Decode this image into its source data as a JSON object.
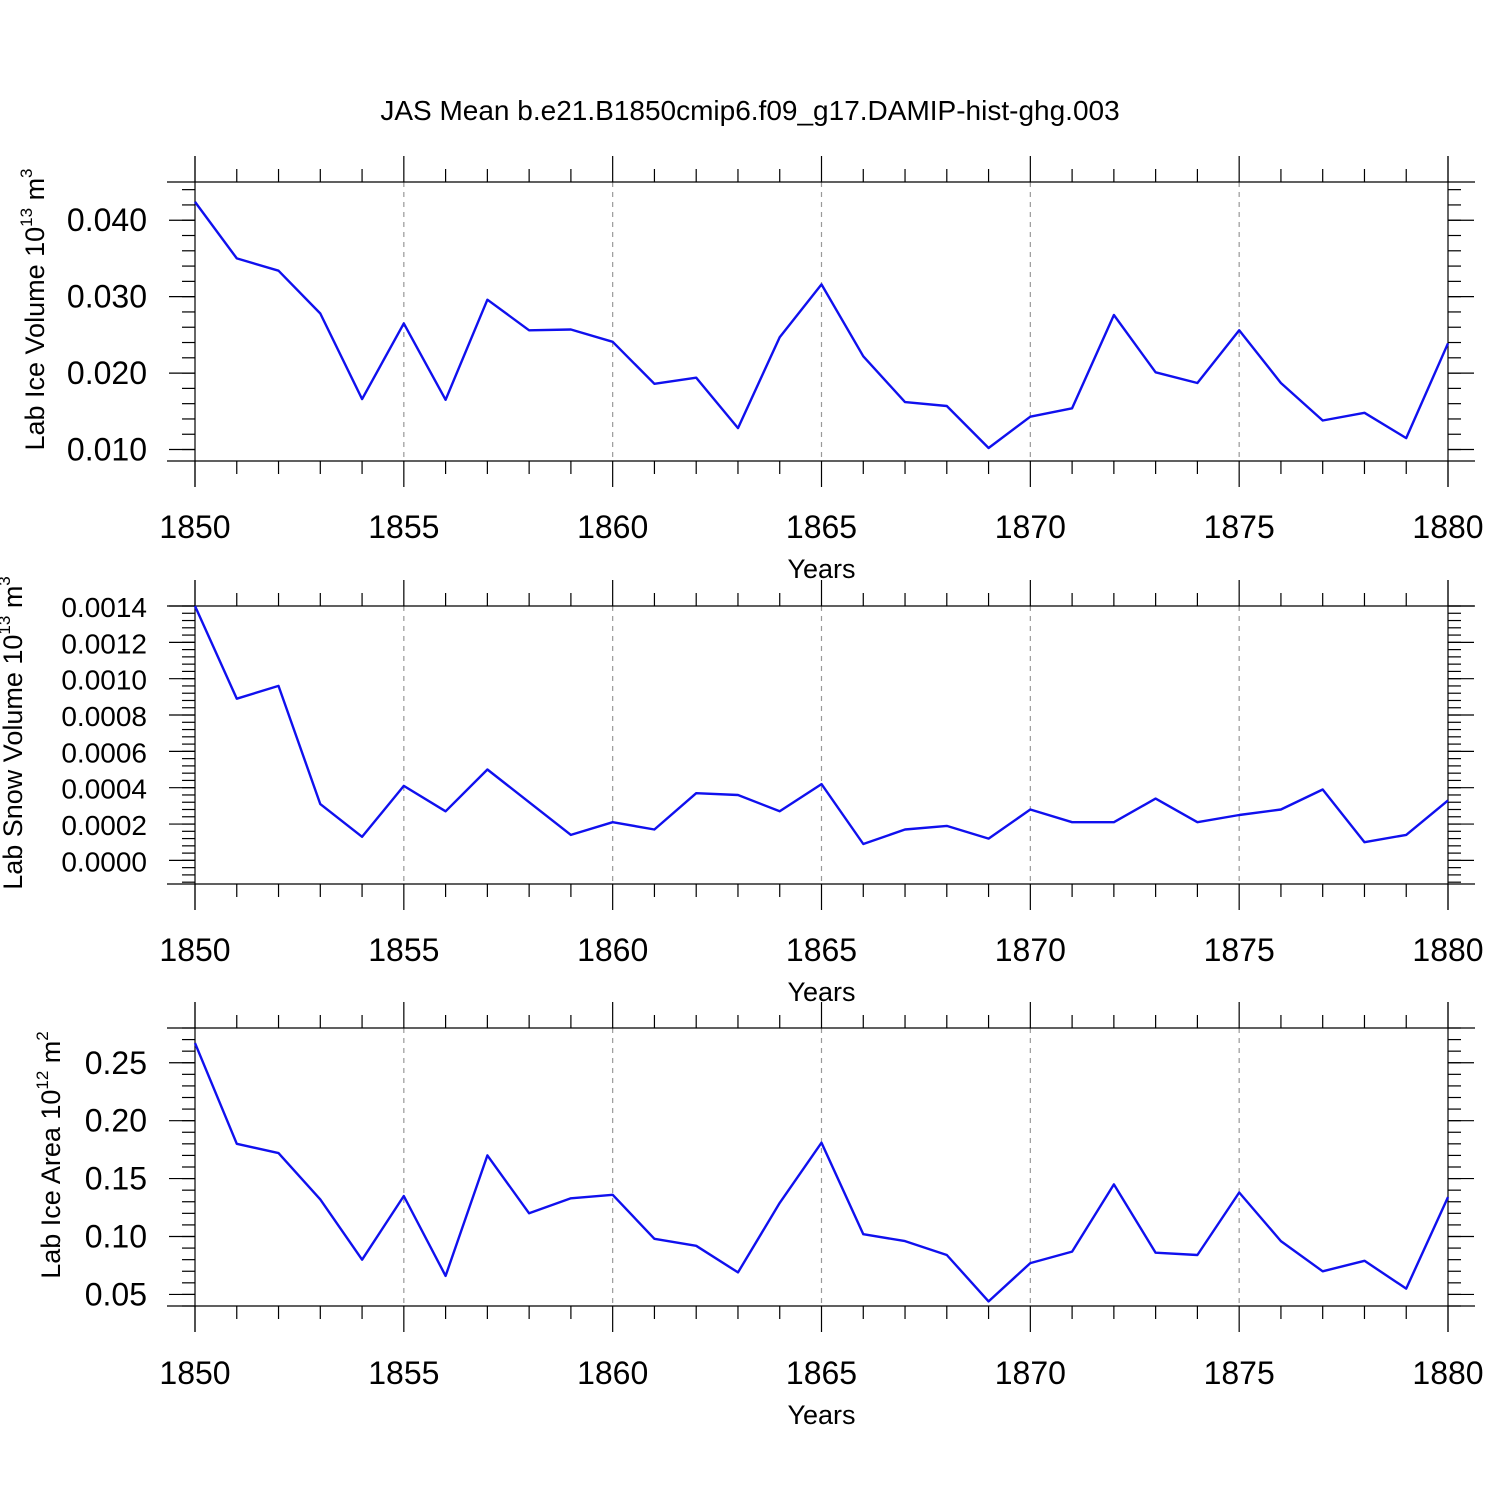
{
  "title": "JAS Mean b.e21.B1850cmip6.f09_g17.DAMIP-hist-ghg.003",
  "colors": {
    "line": "#1010ee",
    "grid": "#999999",
    "axis": "#000000"
  },
  "chart_data": [
    {
      "type": "line",
      "name": "ice-volume",
      "ylabel": "Lab Ice Volume 10",
      "ylabel_exp": "13",
      "ylabel_unit": " m",
      "ylabel_unit_exp": "3",
      "xlabel": "Years",
      "xlim": [
        1850,
        1880
      ],
      "ylim": [
        0.0085,
        0.045
      ],
      "x_ticks": [
        "1850",
        "1855",
        "1860",
        "1865",
        "1870",
        "1875",
        "1880"
      ],
      "y_ticks": [
        {
          "v": 0.01,
          "label": "0.010"
        },
        {
          "v": 0.02,
          "label": "0.020"
        },
        {
          "v": 0.03,
          "label": "0.030"
        },
        {
          "v": 0.04,
          "label": "0.040"
        }
      ],
      "y_minor_step": 0.002,
      "x": [
        1850,
        1851,
        1852,
        1853,
        1854,
        1855,
        1856,
        1857,
        1858,
        1859,
        1860,
        1861,
        1862,
        1863,
        1864,
        1865,
        1866,
        1867,
        1868,
        1869,
        1870,
        1871,
        1872,
        1873,
        1874,
        1875,
        1876,
        1877,
        1878,
        1879,
        1880
      ],
      "values": [
        0.0424,
        0.035,
        0.0334,
        0.0278,
        0.0166,
        0.0265,
        0.0165,
        0.0296,
        0.0256,
        0.0257,
        0.0241,
        0.0186,
        0.0194,
        0.0128,
        0.0247,
        0.0316,
        0.0222,
        0.0162,
        0.0157,
        0.0102,
        0.0143,
        0.0154,
        0.0276,
        0.0201,
        0.0187,
        0.0256,
        0.0187,
        0.0138,
        0.0148,
        0.0115,
        0.0239
      ]
    },
    {
      "type": "line",
      "name": "snow-volume",
      "ylabel": "Lab Snow Volume 10",
      "ylabel_exp": "13",
      "ylabel_unit": " m",
      "ylabel_unit_exp": "3",
      "xlabel": "Years",
      "xlim": [
        1850,
        1880
      ],
      "ylim": [
        -0.00013,
        0.0014
      ],
      "x_ticks": [
        "1850",
        "1855",
        "1860",
        "1865",
        "1870",
        "1875",
        "1880"
      ],
      "y_ticks": [
        {
          "v": 0.0,
          "label": "0.0000"
        },
        {
          "v": 0.0002,
          "label": "0.0002"
        },
        {
          "v": 0.0004,
          "label": "0.0004"
        },
        {
          "v": 0.0006,
          "label": "0.0006"
        },
        {
          "v": 0.0008,
          "label": "0.0008"
        },
        {
          "v": 0.001,
          "label": "0.0010"
        },
        {
          "v": 0.0012,
          "label": "0.0012"
        },
        {
          "v": 0.0014,
          "label": "0.0014"
        }
      ],
      "y_minor_step": 4e-05,
      "x": [
        1850,
        1851,
        1852,
        1853,
        1854,
        1855,
        1856,
        1857,
        1858,
        1859,
        1860,
        1861,
        1862,
        1863,
        1864,
        1865,
        1866,
        1867,
        1868,
        1869,
        1870,
        1871,
        1872,
        1873,
        1874,
        1875,
        1876,
        1877,
        1878,
        1879,
        1880
      ],
      "values": [
        0.0014,
        0.00089,
        0.00096,
        0.00031,
        0.00013,
        0.00041,
        0.00027,
        0.0005,
        0.00032,
        0.00014,
        0.00021,
        0.00017,
        0.00037,
        0.00036,
        0.00027,
        0.00042,
        9e-05,
        0.00017,
        0.00019,
        0.00012,
        0.00028,
        0.00021,
        0.00021,
        0.00034,
        0.00021,
        0.00025,
        0.00028,
        0.00039,
        0.0001,
        0.00014,
        0.00033
      ]
    },
    {
      "type": "line",
      "name": "ice-area",
      "ylabel": "Lab Ice Area 10",
      "ylabel_exp": "12",
      "ylabel_unit": " m",
      "ylabel_unit_exp": "2",
      "xlabel": "Years",
      "xlim": [
        1850,
        1880
      ],
      "ylim": [
        0.04,
        0.28
      ],
      "x_ticks": [
        "1850",
        "1855",
        "1860",
        "1865",
        "1870",
        "1875",
        "1880"
      ],
      "y_ticks": [
        {
          "v": 0.05,
          "label": "0.05"
        },
        {
          "v": 0.1,
          "label": "0.10"
        },
        {
          "v": 0.15,
          "label": "0.15"
        },
        {
          "v": 0.2,
          "label": "0.20"
        },
        {
          "v": 0.25,
          "label": "0.25"
        }
      ],
      "y_minor_step": 0.01,
      "x": [
        1850,
        1851,
        1852,
        1853,
        1854,
        1855,
        1856,
        1857,
        1858,
        1859,
        1860,
        1861,
        1862,
        1863,
        1864,
        1865,
        1866,
        1867,
        1868,
        1869,
        1870,
        1871,
        1872,
        1873,
        1874,
        1875,
        1876,
        1877,
        1878,
        1879,
        1880
      ],
      "values": [
        0.267,
        0.18,
        0.172,
        0.132,
        0.08,
        0.135,
        0.066,
        0.17,
        0.12,
        0.133,
        0.136,
        0.098,
        0.092,
        0.069,
        0.129,
        0.181,
        0.102,
        0.096,
        0.084,
        0.044,
        0.077,
        0.087,
        0.145,
        0.086,
        0.084,
        0.138,
        0.096,
        0.07,
        0.079,
        0.055,
        0.134
      ]
    }
  ]
}
